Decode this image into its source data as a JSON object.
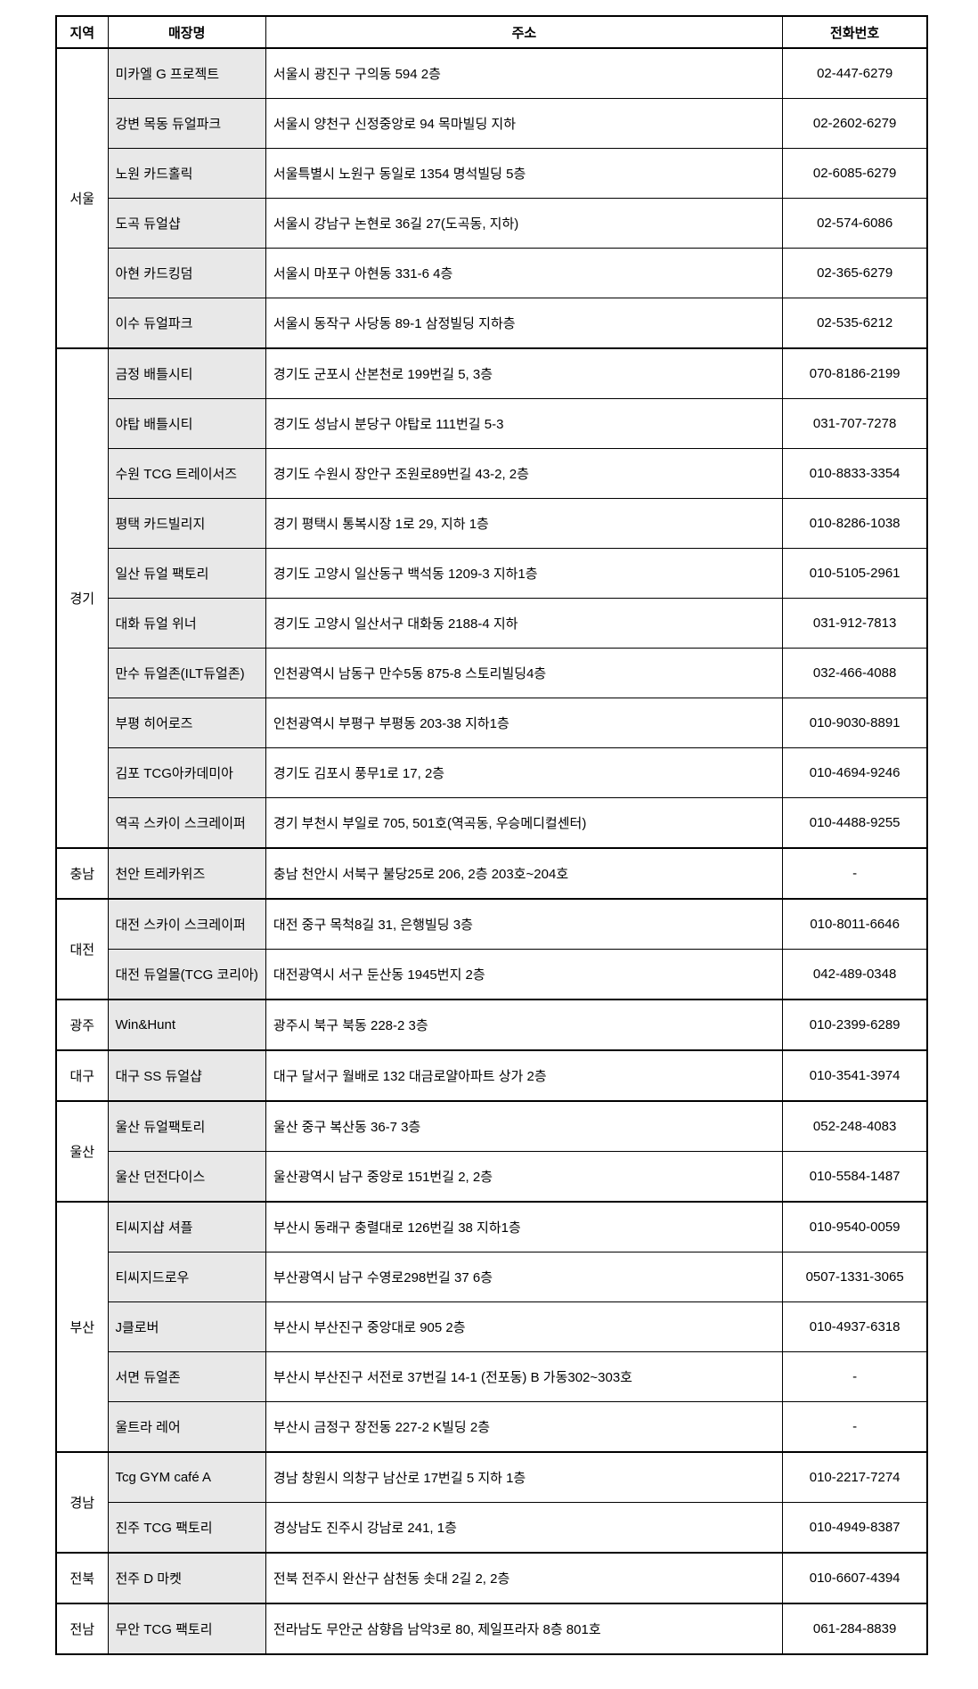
{
  "table": {
    "headers": [
      "지역",
      "매장명",
      "주소",
      "전화번호"
    ],
    "groups": [
      {
        "region": "서울",
        "stores": [
          {
            "name": "미카엘 G 프로젝트",
            "address": "서울시 광진구 구의동 594 2층",
            "phone": "02-447-6279"
          },
          {
            "name": "강변 목동 듀얼파크",
            "address": "서울시 양천구 신정중앙로 94 목마빌딩 지하",
            "phone": "02-2602-6279"
          },
          {
            "name": "노원 카드홀릭",
            "address": "서울특별시 노원구 동일로 1354 명석빌딩 5층",
            "phone": "02-6085-6279"
          },
          {
            "name": "도곡 듀얼샵",
            "address": "서울시 강남구 논현로 36길 27(도곡동, 지하)",
            "phone": "02-574-6086"
          },
          {
            "name": "아현 카드킹덤",
            "address": "서울시 마포구 아현동 331-6 4층",
            "phone": "02-365-6279"
          },
          {
            "name": "이수 듀얼파크",
            "address": "서울시 동작구 사당동 89-1 삼정빌딩 지하층",
            "phone": "02-535-6212"
          }
        ]
      },
      {
        "region": "경기",
        "stores": [
          {
            "name": "금정 배틀시티",
            "address": "경기도 군포시 산본천로 199번길 5, 3층",
            "phone": "070-8186-2199"
          },
          {
            "name": "야탑 배틀시티",
            "address": "경기도 성남시 분당구 야탑로 111번길 5-3",
            "phone": "031-707-7278"
          },
          {
            "name": "수원 TCG 트레이서즈",
            "address": "경기도 수원시 장안구 조원로89번길 43-2, 2층",
            "phone": "010-8833-3354"
          },
          {
            "name": "평택 카드빌리지",
            "address": "경기 평택시 통복시장 1로 29, 지하 1층",
            "phone": "010-8286-1038"
          },
          {
            "name": "일산 듀얼 팩토리",
            "address": "경기도 고양시 일산동구 백석동 1209-3 지하1층",
            "phone": "010-5105-2961"
          },
          {
            "name": "대화 듀얼 위너",
            "address": "경기도 고양시 일산서구 대화동 2188-4 지하",
            "phone": "031-912-7813"
          },
          {
            "name": "만수 듀얼존(ILT듀얼존)",
            "address": "인천광역시 남동구 만수5동 875-8 스토리빌딩4층",
            "phone": "032-466-4088"
          },
          {
            "name": "부평 히어로즈",
            "address": "인천광역시 부평구 부평동 203-38 지하1층",
            "phone": "010-9030-8891"
          },
          {
            "name": "김포 TCG아카데미아",
            "address": "경기도 김포시 풍무1로 17, 2층",
            "phone": "010-4694-9246"
          },
          {
            "name": "역곡 스카이 스크레이퍼",
            "address": "경기 부천시 부일로 705, 501호(역곡동, 우승메디컬센터)",
            "phone": "010-4488-9255"
          }
        ]
      },
      {
        "region": "충남",
        "stores": [
          {
            "name": "천안 트레카위즈",
            "address": "충남 천안시 서북구 불당25로 206, 2층 203호~204호",
            "phone": "-"
          }
        ]
      },
      {
        "region": "대전",
        "stores": [
          {
            "name": "대전 스카이 스크레이퍼",
            "address": "대전 중구 목척8길 31, 은행빌딩 3층",
            "phone": "010-8011-6646"
          },
          {
            "name": "대전 듀얼몰(TCG 코리아)",
            "address": "대전광역시 서구 둔산동 1945번지 2층",
            "phone": "042-489-0348"
          }
        ]
      },
      {
        "region": "광주",
        "stores": [
          {
            "name": "Win&Hunt",
            "address": "광주시 북구 북동 228-2 3층",
            "phone": "010-2399-6289"
          }
        ]
      },
      {
        "region": "대구",
        "stores": [
          {
            "name": "대구 SS 듀얼샵",
            "address": "대구 달서구 월배로 132 대금로얄아파트 상가 2층",
            "phone": "010-3541-3974"
          }
        ]
      },
      {
        "region": "울산",
        "stores": [
          {
            "name": "울산 듀얼팩토리",
            "address": "울산 중구 복산동 36-7 3층",
            "phone": "052-248-4083"
          },
          {
            "name": "울산 던전다이스",
            "address": "울산광역시 남구 중앙로 151번길 2, 2층",
            "phone": "010-5584-1487"
          }
        ]
      },
      {
        "region": "부산",
        "stores": [
          {
            "name": "티씨지샵 셔플",
            "address": "부산시 동래구 충렬대로 126번길 38 지하1층",
            "phone": "010-9540-0059"
          },
          {
            "name": "티씨지드로우",
            "address": "부산광역시 남구 수영로298번길 37 6층",
            "phone": "0507-1331-3065"
          },
          {
            "name": "J클로버",
            "address": "부산시 부산진구 중앙대로 905 2층",
            "phone": "010-4937-6318"
          },
          {
            "name": "서면 듀얼존",
            "address": "부산시 부산진구 서전로 37번길 14-1 (전포동) B 가동302~303호",
            "phone": "-"
          },
          {
            "name": "울트라 레어",
            "address": "부산시 금정구 장전동 227-2 K빌딩 2층",
            "phone": "-"
          }
        ]
      },
      {
        "region": "경남",
        "stores": [
          {
            "name": "Tcg GYM café A",
            "address": "경남 창원시 의창구 남산로 17번길 5 지하 1층",
            "phone": "010-2217-7274"
          },
          {
            "name": "진주 TCG 팩토리",
            "address": "경상남도 진주시 강남로 241, 1층",
            "phone": "010-4949-8387"
          }
        ]
      },
      {
        "region": "전북",
        "stores": [
          {
            "name": "전주 D 마켓",
            "address": "전북 전주시 완산구 삼천동 솟대 2길 2, 2층",
            "phone": "010-6607-4394"
          }
        ]
      },
      {
        "region": "전남",
        "stores": [
          {
            "name": "무안 TCG 팩토리",
            "address": "전라남도 무안군 삼향읍 남악3로 80, 제일프라자 8층 801호",
            "phone": "061-284-8839"
          }
        ]
      }
    ]
  }
}
